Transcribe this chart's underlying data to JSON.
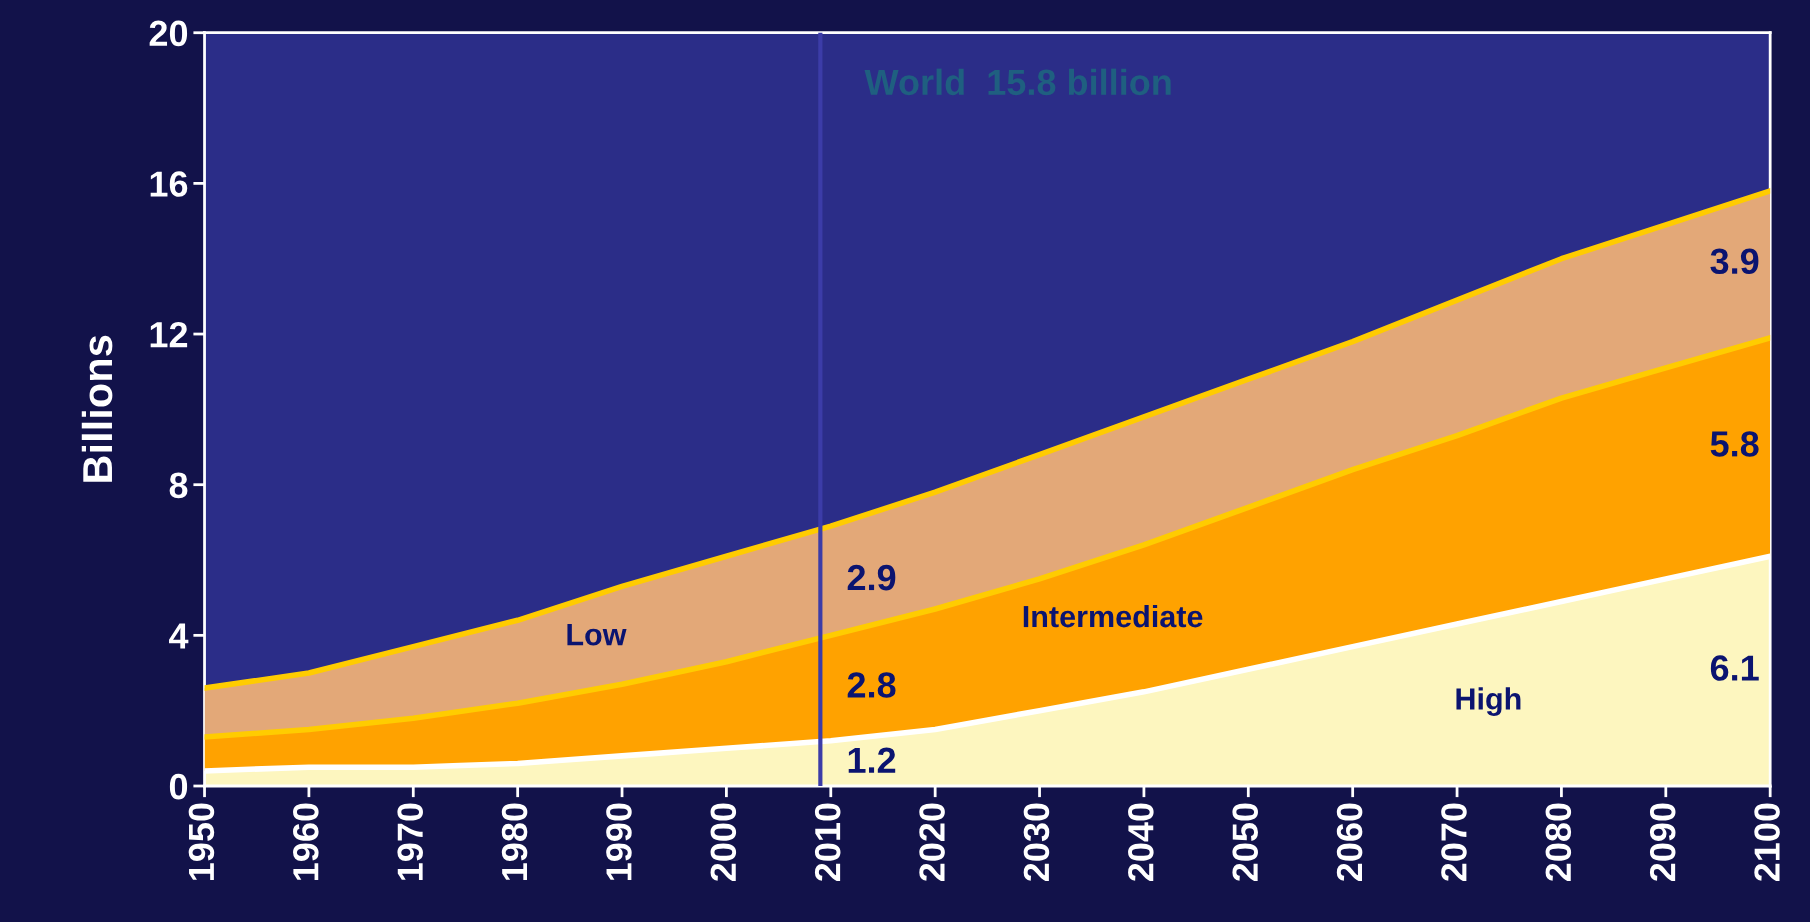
{
  "chart_data": {
    "type": "area",
    "stacked": true,
    "ylabel": "Billions",
    "x": [
      1950,
      1960,
      1970,
      1980,
      1990,
      2000,
      2010,
      2020,
      2030,
      2040,
      2050,
      2060,
      2070,
      2080,
      2090,
      2100
    ],
    "xlim": [
      1950,
      2100
    ],
    "xticks": [
      1950,
      1960,
      1970,
      1980,
      1990,
      2000,
      2010,
      2020,
      2030,
      2040,
      2050,
      2060,
      2070,
      2080,
      2090,
      2100
    ],
    "ylim": [
      0,
      20
    ],
    "yticks": [
      0,
      4,
      8,
      12,
      16,
      20
    ],
    "grid": false,
    "series": [
      {
        "name": "High",
        "color": "#fdf6bf",
        "values": [
          0.4,
          0.5,
          0.5,
          0.6,
          0.8,
          1.0,
          1.2,
          1.5,
          2.0,
          2.5,
          3.1,
          3.7,
          4.3,
          4.9,
          5.5,
          6.1
        ],
        "value_labels": [
          null,
          null,
          null,
          null,
          null,
          null,
          "1.2",
          null,
          null,
          null,
          null,
          null,
          null,
          null,
          null,
          "6.1"
        ]
      },
      {
        "name": "Intermediate",
        "color": "#ffa200",
        "values": [
          0.9,
          1.0,
          1.3,
          1.6,
          1.9,
          2.3,
          2.8,
          3.2,
          3.5,
          3.9,
          4.3,
          4.7,
          5.0,
          5.4,
          5.6,
          5.8
        ],
        "value_labels": [
          null,
          null,
          null,
          null,
          null,
          null,
          "2.8",
          null,
          null,
          null,
          null,
          null,
          null,
          null,
          null,
          "5.8"
        ]
      },
      {
        "name": "Low",
        "color": "#e3a878",
        "values": [
          1.3,
          1.5,
          1.9,
          2.2,
          2.6,
          2.8,
          2.9,
          3.1,
          3.3,
          3.4,
          3.4,
          3.4,
          3.6,
          3.7,
          3.8,
          3.9
        ],
        "value_labels": [
          null,
          null,
          null,
          null,
          null,
          null,
          "2.9",
          null,
          null,
          null,
          null,
          null,
          null,
          null,
          null,
          "3.9"
        ]
      }
    ],
    "ref_lines": [
      {
        "axis": "x",
        "value": 2009,
        "color": "#3c3ca8"
      }
    ],
    "annotations": [
      "World  15.8 billion"
    ]
  }
}
